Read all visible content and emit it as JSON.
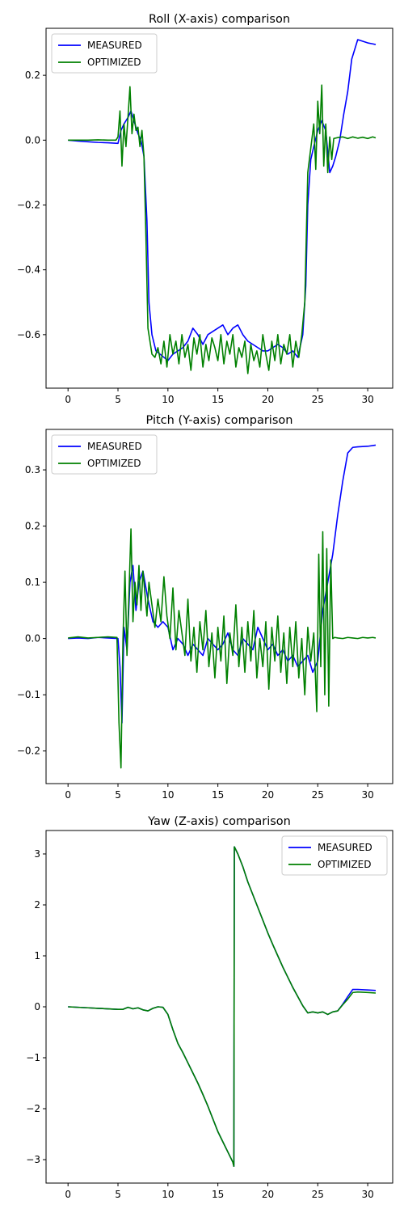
{
  "chart_data": [
    {
      "type": "line",
      "title": "Roll (X-axis) comparison",
      "xlabel": "",
      "ylabel": "",
      "xlim": [
        -2.2,
        32.5
      ],
      "ylim": [
        -0.765,
        0.345
      ],
      "xticks": [
        0,
        5,
        10,
        15,
        20,
        25,
        30
      ],
      "yticks": [
        -0.6,
        -0.4,
        -0.2,
        0.0,
        0.2
      ],
      "ytick_labels": [
        "−0.6",
        "−0.4",
        "−0.2",
        "0.0",
        "0.2"
      ],
      "legend_position": "upper-left",
      "grid": false,
      "series": [
        {
          "name": "MEASURED",
          "color": "#0000ff",
          "x": [
            0,
            1,
            2,
            3,
            4,
            5,
            5.3,
            5.6,
            6.0,
            6.3,
            6.6,
            7.0,
            7.3,
            7.6,
            7.9,
            8.1,
            8.4,
            8.8,
            9.2,
            9.6,
            10.0,
            10.5,
            11.0,
            11.5,
            12.0,
            12.5,
            13.0,
            13.5,
            14.0,
            14.5,
            15.0,
            15.5,
            16.0,
            16.5,
            17.0,
            17.5,
            18.0,
            18.5,
            19.0,
            19.5,
            20.0,
            20.5,
            21.0,
            21.5,
            22.0,
            22.5,
            23.0,
            23.5,
            23.8,
            24.0,
            24.3,
            24.6,
            25.0,
            25.4,
            25.8,
            26.2,
            26.5,
            26.8,
            27.2,
            27.6,
            28.0,
            28.4,
            29.0,
            29.5,
            30.0,
            30.5,
            30.8
          ],
          "y": [
            0.0,
            -0.003,
            -0.005,
            -0.007,
            -0.008,
            -0.01,
            0.03,
            0.05,
            0.07,
            0.09,
            0.06,
            0.02,
            0.0,
            -0.05,
            -0.25,
            -0.5,
            -0.6,
            -0.65,
            -0.66,
            -0.67,
            -0.68,
            -0.66,
            -0.65,
            -0.64,
            -0.62,
            -0.58,
            -0.6,
            -0.63,
            -0.6,
            -0.59,
            -0.58,
            -0.57,
            -0.6,
            -0.58,
            -0.57,
            -0.6,
            -0.62,
            -0.63,
            -0.64,
            -0.65,
            -0.65,
            -0.64,
            -0.63,
            -0.64,
            -0.66,
            -0.65,
            -0.67,
            -0.6,
            -0.45,
            -0.2,
            -0.06,
            -0.02,
            0.03,
            0.06,
            0.03,
            -0.1,
            -0.08,
            -0.05,
            0.0,
            0.08,
            0.15,
            0.25,
            0.31,
            0.305,
            0.3,
            0.297,
            0.295
          ]
        },
        {
          "name": "OPTIMIZED",
          "color": "#008000",
          "x": [
            0,
            1,
            2,
            3,
            4,
            4.8,
            5.0,
            5.2,
            5.4,
            5.6,
            5.8,
            6.0,
            6.2,
            6.4,
            6.6,
            6.8,
            7.0,
            7.2,
            7.4,
            7.6,
            7.8,
            8.0,
            8.2,
            8.4,
            8.7,
            9.0,
            9.3,
            9.6,
            9.9,
            10.2,
            10.5,
            10.8,
            11.1,
            11.4,
            11.7,
            12.0,
            12.3,
            12.6,
            12.9,
            13.2,
            13.5,
            13.8,
            14.1,
            14.4,
            14.7,
            15.0,
            15.3,
            15.6,
            15.9,
            16.2,
            16.5,
            16.8,
            17.1,
            17.4,
            17.7,
            18.0,
            18.3,
            18.6,
            18.9,
            19.2,
            19.5,
            19.8,
            20.1,
            20.4,
            20.7,
            21.0,
            21.3,
            21.6,
            21.9,
            22.2,
            22.5,
            22.8,
            23.1,
            23.4,
            23.7,
            24.0,
            24.2,
            24.4,
            24.6,
            24.8,
            25.0,
            25.2,
            25.4,
            25.6,
            25.8,
            26.0,
            26.2,
            26.4,
            26.6,
            27.0,
            27.5,
            28.0,
            28.5,
            29.0,
            29.5,
            30.0,
            30.5,
            30.8
          ],
          "y": [
            0.0,
            0.0,
            0.0,
            0.001,
            0.0,
            0.0,
            0.01,
            0.09,
            -0.08,
            0.05,
            -0.02,
            0.07,
            0.165,
            0.02,
            0.08,
            0.03,
            0.04,
            -0.02,
            0.03,
            -0.05,
            -0.3,
            -0.58,
            -0.62,
            -0.66,
            -0.67,
            -0.64,
            -0.69,
            -0.62,
            -0.7,
            -0.6,
            -0.66,
            -0.62,
            -0.69,
            -0.6,
            -0.67,
            -0.63,
            -0.71,
            -0.61,
            -0.66,
            -0.6,
            -0.7,
            -0.63,
            -0.68,
            -0.61,
            -0.64,
            -0.68,
            -0.6,
            -0.69,
            -0.62,
            -0.66,
            -0.6,
            -0.7,
            -0.64,
            -0.67,
            -0.62,
            -0.72,
            -0.63,
            -0.68,
            -0.65,
            -0.7,
            -0.6,
            -0.66,
            -0.71,
            -0.62,
            -0.68,
            -0.6,
            -0.69,
            -0.63,
            -0.66,
            -0.6,
            -0.7,
            -0.62,
            -0.67,
            -0.6,
            -0.5,
            -0.1,
            -0.05,
            0.0,
            0.05,
            -0.09,
            0.12,
            0.02,
            0.17,
            -0.08,
            0.05,
            -0.1,
            0.01,
            -0.06,
            0.005,
            0.008,
            0.01,
            0.005,
            0.01,
            0.006,
            0.009,
            0.005,
            0.01,
            0.007
          ]
        }
      ]
    },
    {
      "type": "line",
      "title": "Pitch (Y-axis) comparison",
      "xlabel": "",
      "ylabel": "",
      "xlim": [
        -2.2,
        32.5
      ],
      "ylim": [
        -0.258,
        0.372
      ],
      "xticks": [
        0,
        5,
        10,
        15,
        20,
        25,
        30
      ],
      "yticks": [
        -0.2,
        -0.1,
        0.0,
        0.1,
        0.2,
        0.3
      ],
      "ytick_labels": [
        "−0.2",
        "−0.1",
        "0.0",
        "0.1",
        "0.2",
        "0.3"
      ],
      "legend_position": "upper-left",
      "grid": false,
      "series": [
        {
          "name": "MEASURED",
          "color": "#0000ff",
          "x": [
            0,
            1,
            2,
            3,
            4,
            5.0,
            5.2,
            5.4,
            5.6,
            5.9,
            6.2,
            6.5,
            6.8,
            7.1,
            7.5,
            8.0,
            8.5,
            9.0,
            9.5,
            10.0,
            10.5,
            11.0,
            11.5,
            12.0,
            12.5,
            13.0,
            13.5,
            14.0,
            14.5,
            15.0,
            15.5,
            16.0,
            16.5,
            17.0,
            17.5,
            18.0,
            18.5,
            19.0,
            19.5,
            20.0,
            20.5,
            21.0,
            21.5,
            22.0,
            22.5,
            23.0,
            23.5,
            24.0,
            24.5,
            25.0,
            25.5,
            26.0,
            26.5,
            27.0,
            27.5,
            28.0,
            28.5,
            29.0,
            30.0,
            30.8
          ],
          "y": [
            0.0,
            0.001,
            0.0,
            0.002,
            0.001,
            0.0,
            -0.05,
            -0.15,
            0.02,
            -0.02,
            0.1,
            0.13,
            0.05,
            0.1,
            0.12,
            0.07,
            0.03,
            0.02,
            0.03,
            0.02,
            -0.02,
            0.0,
            -0.01,
            -0.03,
            -0.01,
            -0.02,
            -0.03,
            0.0,
            -0.01,
            -0.02,
            -0.01,
            0.01,
            -0.02,
            -0.03,
            0.0,
            -0.01,
            -0.02,
            0.02,
            0.0,
            -0.02,
            -0.01,
            -0.03,
            -0.02,
            -0.04,
            -0.03,
            -0.05,
            -0.04,
            -0.03,
            -0.06,
            -0.04,
            0.05,
            0.1,
            0.15,
            0.22,
            0.28,
            0.33,
            0.34,
            0.341,
            0.342,
            0.344
          ]
        },
        {
          "name": "OPTIMIZED",
          "color": "#008000",
          "x": [
            0,
            1,
            2,
            3,
            4,
            4.9,
            5.1,
            5.3,
            5.5,
            5.7,
            5.9,
            6.1,
            6.3,
            6.5,
            6.7,
            6.9,
            7.1,
            7.3,
            7.5,
            7.7,
            7.9,
            8.1,
            8.4,
            8.7,
            9.0,
            9.3,
            9.6,
            9.9,
            10.2,
            10.5,
            10.8,
            11.1,
            11.4,
            11.7,
            12.0,
            12.3,
            12.6,
            12.9,
            13.2,
            13.5,
            13.8,
            14.1,
            14.4,
            14.7,
            15.0,
            15.3,
            15.6,
            15.9,
            16.2,
            16.5,
            16.8,
            17.1,
            17.4,
            17.7,
            18.0,
            18.3,
            18.6,
            18.9,
            19.2,
            19.5,
            19.8,
            20.1,
            20.4,
            20.7,
            21.0,
            21.3,
            21.6,
            21.9,
            22.2,
            22.5,
            22.8,
            23.1,
            23.4,
            23.7,
            24.0,
            24.3,
            24.6,
            24.9,
            25.1,
            25.3,
            25.5,
            25.7,
            25.9,
            26.1,
            26.3,
            26.5,
            26.7,
            27.0,
            27.5,
            28.0,
            28.5,
            29.0,
            29.5,
            30.0,
            30.5,
            30.8
          ],
          "y": [
            0.001,
            0.003,
            0.001,
            0.002,
            0.003,
            0.002,
            -0.15,
            -0.23,
            0.0,
            0.12,
            -0.03,
            0.08,
            0.195,
            0.03,
            0.1,
            0.06,
            0.13,
            0.05,
            0.12,
            0.08,
            0.04,
            0.1,
            0.06,
            0.02,
            0.07,
            0.03,
            0.11,
            0.04,
            0.0,
            0.09,
            -0.02,
            0.05,
            0.01,
            -0.03,
            0.07,
            -0.04,
            0.02,
            -0.06,
            0.03,
            -0.02,
            0.05,
            -0.05,
            0.01,
            -0.07,
            0.02,
            -0.04,
            0.04,
            -0.08,
            0.01,
            -0.03,
            0.06,
            -0.05,
            0.02,
            -0.06,
            0.03,
            -0.04,
            0.05,
            -0.07,
            0.0,
            -0.05,
            0.03,
            -0.09,
            0.02,
            -0.04,
            0.04,
            -0.06,
            0.01,
            -0.08,
            0.02,
            -0.05,
            0.03,
            -0.07,
            0.0,
            -0.1,
            0.02,
            -0.04,
            0.01,
            -0.13,
            0.15,
            -0.05,
            0.19,
            -0.1,
            0.16,
            -0.12,
            0.14,
            0.0,
            0.002,
            0.001,
            0.0,
            0.002,
            0.001,
            0.0,
            0.002,
            0.001,
            0.002,
            0.001
          ]
        }
      ]
    },
    {
      "type": "line",
      "title": "Yaw (Z-axis) comparison",
      "xlabel": "",
      "ylabel": "",
      "xlim": [
        -2.2,
        32.5
      ],
      "ylim": [
        -3.46,
        3.46
      ],
      "xticks": [
        0,
        5,
        10,
        15,
        20,
        25,
        30
      ],
      "yticks": [
        -3,
        -2,
        -1,
        0,
        1,
        2,
        3
      ],
      "ytick_labels": [
        "−3",
        "−2",
        "−1",
        "0",
        "1",
        "2",
        "3"
      ],
      "legend_position": "upper-right",
      "grid": false,
      "series": [
        {
          "name": "MEASURED",
          "color": "#0000ff",
          "x": [
            0,
            1,
            2,
            3,
            4,
            5,
            5.5,
            6.0,
            6.5,
            7.0,
            7.5,
            8.0,
            8.5,
            9.0,
            9.5,
            10.0,
            10.5,
            11.0,
            11.5,
            12.0,
            12.5,
            13.0,
            13.5,
            14.0,
            14.5,
            15.0,
            15.5,
            16.0,
            16.5,
            16.6,
            16.65,
            17.0,
            17.5,
            18.0,
            18.5,
            19.0,
            19.5,
            20.0,
            20.5,
            21.0,
            21.5,
            22.0,
            22.5,
            23.0,
            23.5,
            24.0,
            24.5,
            25.0,
            25.5,
            26.0,
            26.5,
            27.0,
            27.5,
            28.0,
            28.5,
            29.0,
            30.0,
            30.8
          ],
          "y": [
            0.0,
            -0.01,
            -0.02,
            -0.03,
            -0.04,
            -0.05,
            -0.05,
            -0.01,
            -0.04,
            -0.02,
            -0.06,
            -0.08,
            -0.03,
            0.0,
            -0.01,
            -0.15,
            -0.45,
            -0.72,
            -0.9,
            -1.1,
            -1.3,
            -1.5,
            -1.72,
            -1.95,
            -2.2,
            -2.45,
            -2.65,
            -2.85,
            -3.05,
            -3.13,
            3.14,
            3.0,
            2.75,
            2.45,
            2.2,
            1.95,
            1.7,
            1.45,
            1.22,
            1.0,
            0.78,
            0.58,
            0.38,
            0.2,
            0.02,
            -0.12,
            -0.1,
            -0.12,
            -0.1,
            -0.15,
            -0.1,
            -0.08,
            0.05,
            0.2,
            0.34,
            0.34,
            0.33,
            0.32
          ]
        },
        {
          "name": "OPTIMIZED",
          "color": "#008000",
          "x": [
            0,
            1,
            2,
            3,
            4,
            5,
            5.5,
            6.0,
            6.5,
            7.0,
            7.5,
            8.0,
            8.5,
            9.0,
            9.5,
            10.0,
            10.5,
            11.0,
            11.5,
            12.0,
            12.5,
            13.0,
            13.5,
            14.0,
            14.5,
            15.0,
            15.5,
            16.0,
            16.5,
            16.6,
            16.65,
            17.0,
            17.5,
            18.0,
            18.5,
            19.0,
            19.5,
            20.0,
            20.5,
            21.0,
            21.5,
            22.0,
            22.5,
            23.0,
            23.5,
            24.0,
            24.5,
            25.0,
            25.5,
            26.0,
            26.5,
            27.0,
            27.5,
            28.0,
            28.5,
            29.0,
            30.0,
            30.8
          ],
          "y": [
            0.0,
            -0.01,
            -0.02,
            -0.03,
            -0.04,
            -0.05,
            -0.05,
            -0.01,
            -0.04,
            -0.02,
            -0.06,
            -0.08,
            -0.03,
            0.0,
            -0.01,
            -0.15,
            -0.45,
            -0.72,
            -0.9,
            -1.1,
            -1.3,
            -1.5,
            -1.72,
            -1.95,
            -2.2,
            -2.45,
            -2.65,
            -2.85,
            -3.05,
            -3.13,
            3.14,
            3.0,
            2.75,
            2.45,
            2.2,
            1.95,
            1.7,
            1.45,
            1.22,
            1.0,
            0.78,
            0.58,
            0.38,
            0.2,
            0.02,
            -0.12,
            -0.1,
            -0.12,
            -0.1,
            -0.15,
            -0.1,
            -0.08,
            0.04,
            0.15,
            0.28,
            0.29,
            0.28,
            0.27
          ]
        }
      ]
    }
  ]
}
